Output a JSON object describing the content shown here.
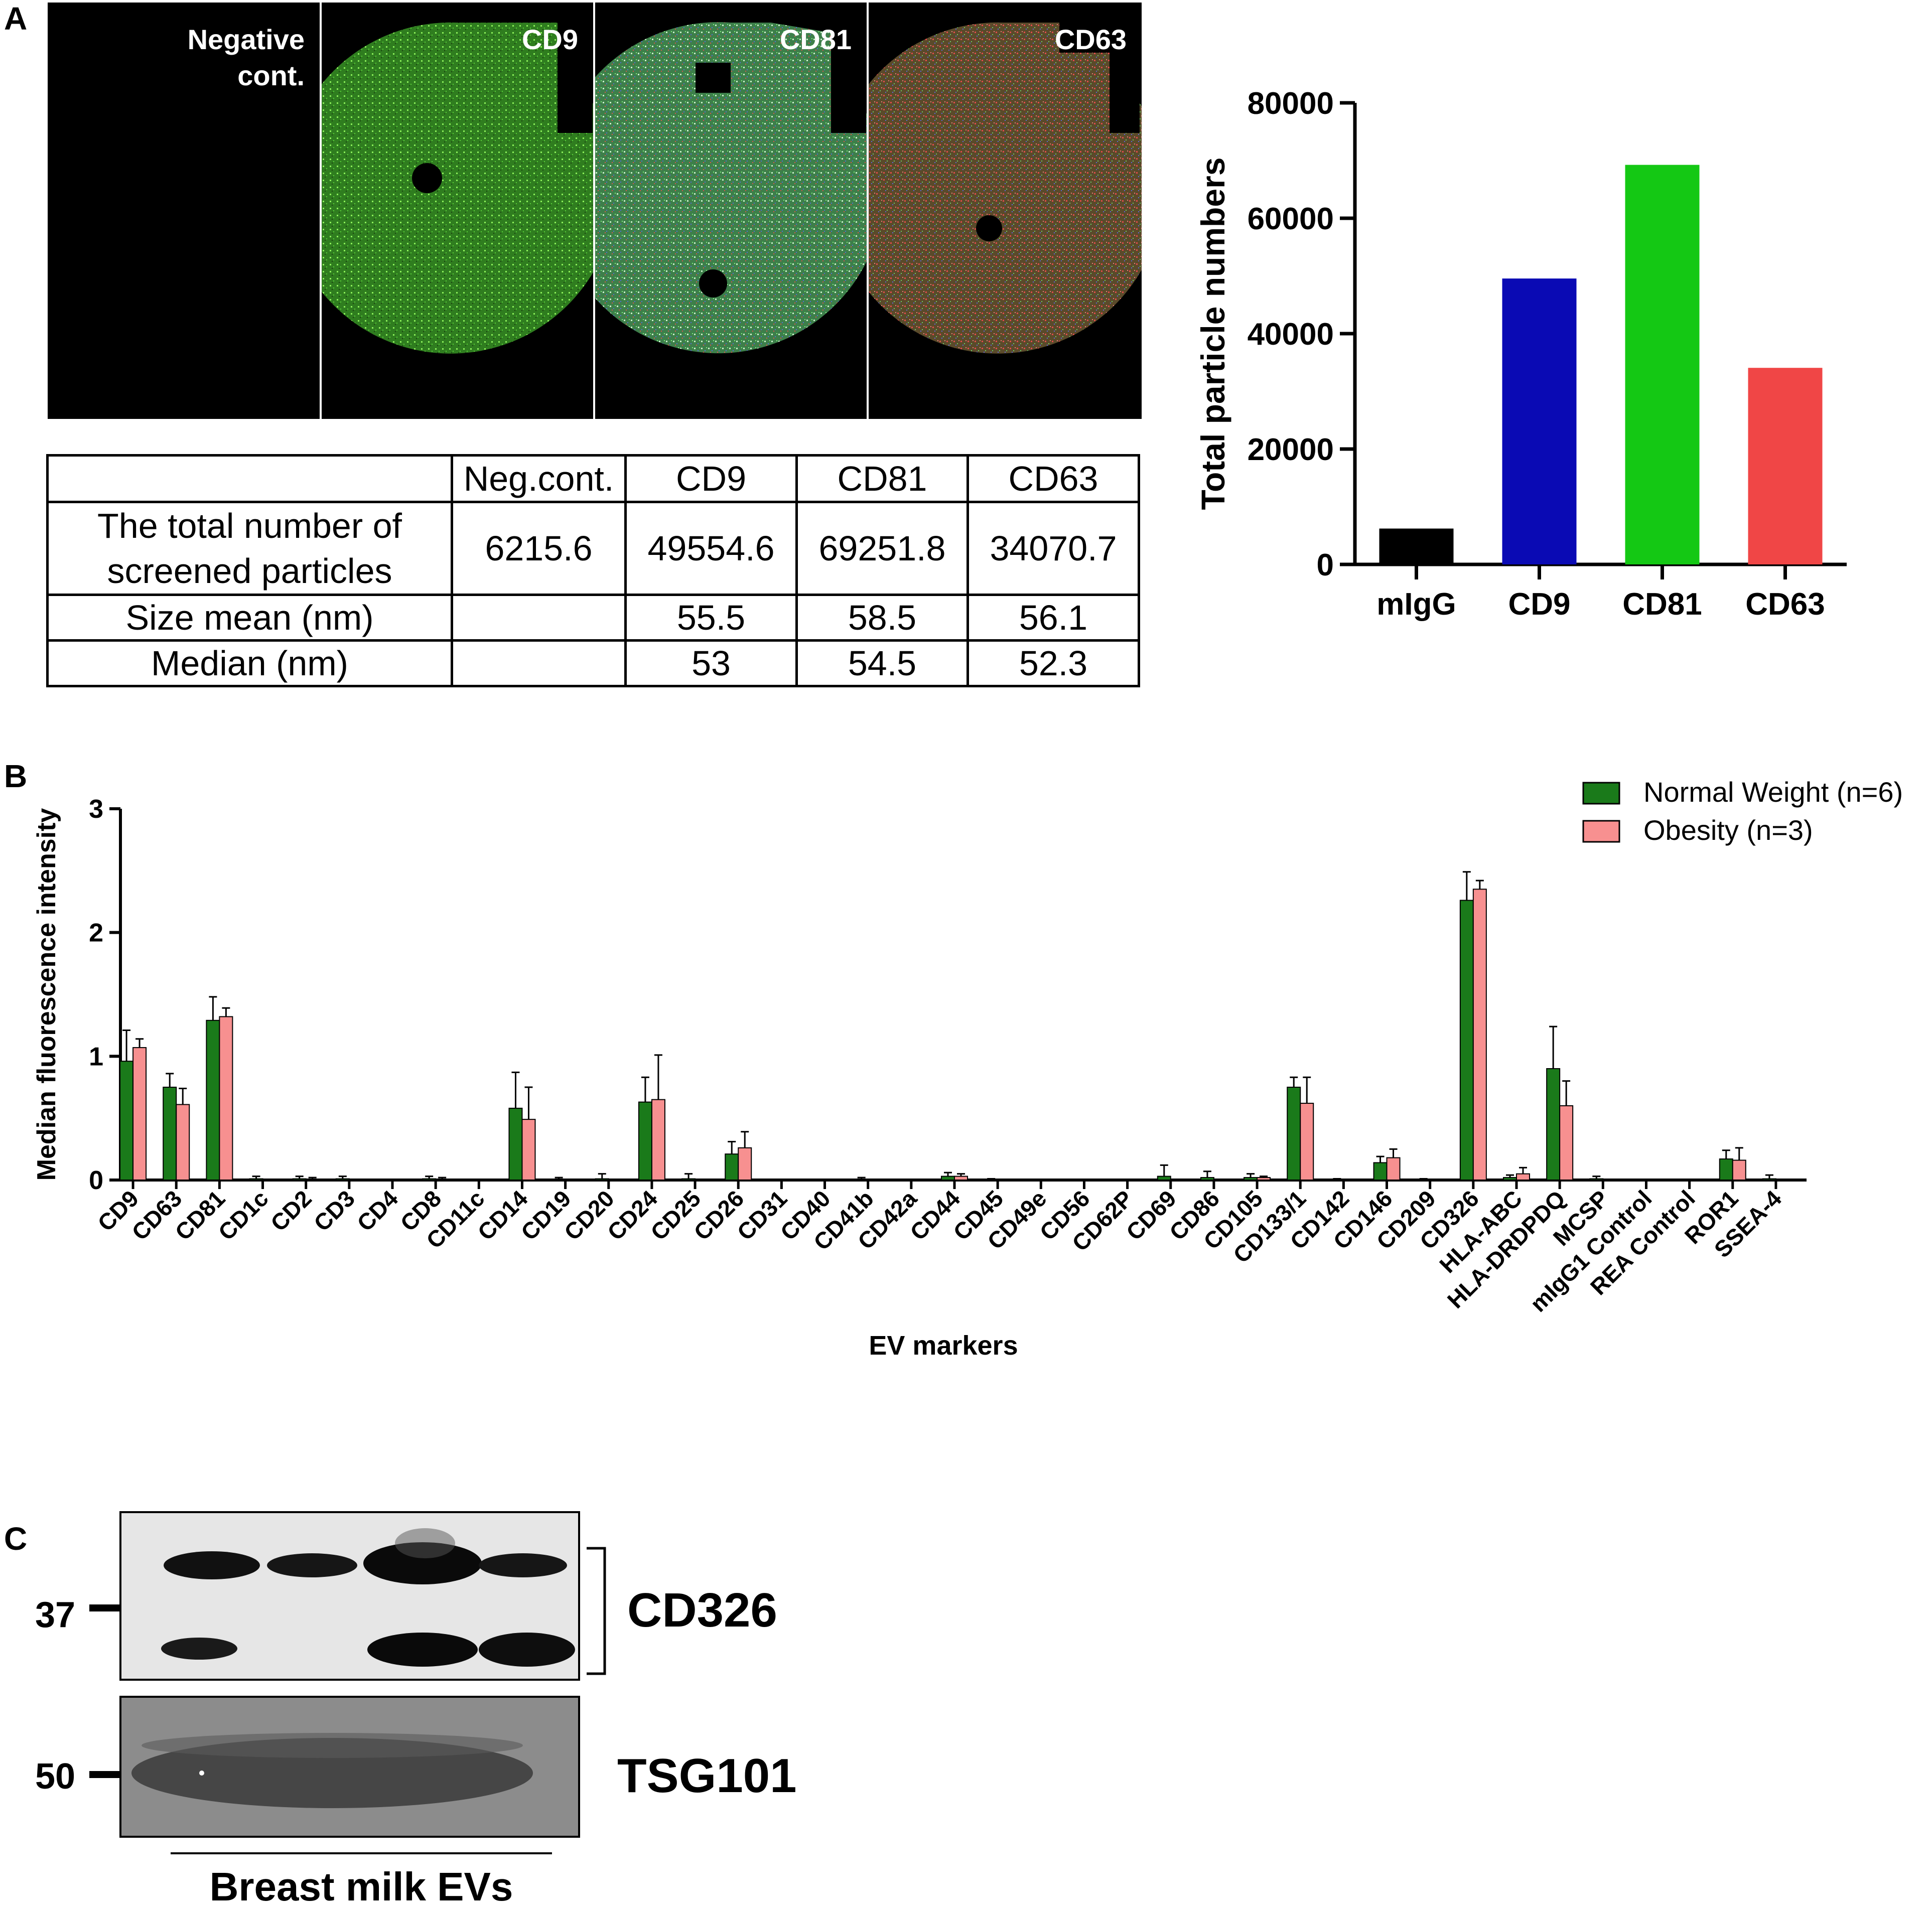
{
  "panels": {
    "a": {
      "letter": "A",
      "images": [
        {
          "label_lines": [
            "Negative",
            "cont."
          ]
        },
        {
          "label_lines": [
            "CD9"
          ]
        },
        {
          "label_lines": [
            "CD81"
          ]
        },
        {
          "label_lines": [
            "CD63"
          ]
        }
      ],
      "table": {
        "header": [
          "",
          "Neg.cont.",
          "CD9",
          "CD81",
          "CD63"
        ],
        "rows": [
          {
            "label_lines": [
              "The total number of",
              "screened particles"
            ],
            "values": [
              "6215.6",
              "49554.6",
              "69251.8",
              "34070.7"
            ]
          },
          {
            "label_lines": [
              "Size mean (nm)"
            ],
            "values": [
              "",
              "55.5",
              "58.5",
              "56.1"
            ]
          },
          {
            "label_lines": [
              "Median (nm)"
            ],
            "values": [
              "",
              "53",
              "54.5",
              "52.3"
            ]
          }
        ]
      }
    },
    "b": {
      "letter": "B"
    },
    "c": {
      "letter": "C",
      "blots": [
        {
          "label": "CD326",
          "mw_marker": "37"
        },
        {
          "label": "TSG101",
          "mw_marker": "50"
        }
      ],
      "group_label": "Breast milk EVs"
    }
  },
  "colors": {
    "mIgG": "#000000",
    "CD9": "#0a0ab4",
    "CD81": "#14c814",
    "CD63": "#f04646",
    "normal_weight": "#1a7a1a",
    "obesity": "#f79090"
  },
  "chart_data": [
    {
      "type": "bar",
      "categories": [
        "mIgG",
        "CD9",
        "CD81",
        "CD63"
      ],
      "values": [
        6215.6,
        49554.6,
        69251.8,
        34070.7
      ],
      "ylabel": "Total particle numbers",
      "ylim": [
        0,
        80000
      ],
      "yticks": [
        "0",
        "20000",
        "40000",
        "60000",
        "80000"
      ],
      "grid": false
    },
    {
      "type": "bar",
      "xlabel": "EV markers",
      "ylabel": "Median fluorescence intensity",
      "ylim": [
        0,
        3
      ],
      "yticks": [
        "0",
        "1",
        "2",
        "3"
      ],
      "legend_position": "top-right",
      "grid": false,
      "categories": [
        "CD9",
        "CD63",
        "CD81",
        "CD1c",
        "CD2",
        "CD3",
        "CD4",
        "CD8",
        "CD11c",
        "CD14",
        "CD19",
        "CD20",
        "CD24",
        "CD25",
        "CD26",
        "CD31",
        "CD40",
        "CD41b",
        "CD42a",
        "CD44",
        "CD45",
        "CD49e",
        "CD56",
        "CD62P",
        "CD69",
        "CD86",
        "CD105",
        "CD133/1",
        "CD142",
        "CD146",
        "CD209",
        "CD326",
        "HLA-ABC",
        "HLA-DRDPDQ",
        "MCSP",
        "mIgG1 Control",
        "REA Control",
        "ROR1",
        "SSEA-4"
      ],
      "series": [
        {
          "name": "Normal Weight (n=6)",
          "values": [
            0.96,
            0.75,
            1.29,
            0.01,
            0.01,
            0.01,
            0.0,
            0.01,
            0.0,
            0.58,
            0.0,
            0.01,
            0.63,
            0.01,
            0.21,
            0.0,
            0.0,
            0.0,
            0.0,
            0.03,
            0.0,
            0.0,
            0.0,
            0.0,
            0.03,
            0.02,
            0.02,
            0.75,
            0.0,
            0.14,
            0.0,
            2.26,
            0.02,
            0.9,
            0.01,
            0.0,
            0.0,
            0.17,
            0.01
          ],
          "errors": [
            0.25,
            0.11,
            0.19,
            0.02,
            0.02,
            0.02,
            0.0,
            0.02,
            0.0,
            0.29,
            0.02,
            0.04,
            0.2,
            0.04,
            0.1,
            0.0,
            0.0,
            0.02,
            0.0,
            0.03,
            0.01,
            0.0,
            0.0,
            0.0,
            0.09,
            0.05,
            0.03,
            0.08,
            0.01,
            0.05,
            0.01,
            0.23,
            0.02,
            0.34,
            0.02,
            0.0,
            0.0,
            0.07,
            0.03
          ]
        },
        {
          "name": "Obesity (n=3)",
          "values": [
            1.07,
            0.61,
            1.32,
            0.0,
            0.0,
            0.0,
            0.0,
            0.0,
            0.0,
            0.49,
            0.0,
            0.0,
            0.65,
            0.0,
            0.26,
            0.0,
            0.0,
            0.0,
            0.0,
            0.03,
            0.0,
            0.0,
            0.0,
            0.0,
            0.0,
            0.0,
            0.02,
            0.62,
            0.0,
            0.18,
            0.0,
            2.35,
            0.05,
            0.6,
            0.0,
            0.0,
            0.0,
            0.16,
            0.0
          ],
          "errors": [
            0.07,
            0.13,
            0.07,
            0.0,
            0.02,
            0.0,
            0.0,
            0.02,
            0.0,
            0.26,
            0.0,
            0.0,
            0.36,
            0.0,
            0.13,
            0.0,
            0.0,
            0.0,
            0.0,
            0.02,
            0.0,
            0.0,
            0.0,
            0.0,
            0.0,
            0.0,
            0.01,
            0.21,
            0.0,
            0.07,
            0.0,
            0.07,
            0.05,
            0.2,
            0.0,
            0.0,
            0.0,
            0.1,
            0.0
          ]
        }
      ]
    }
  ]
}
